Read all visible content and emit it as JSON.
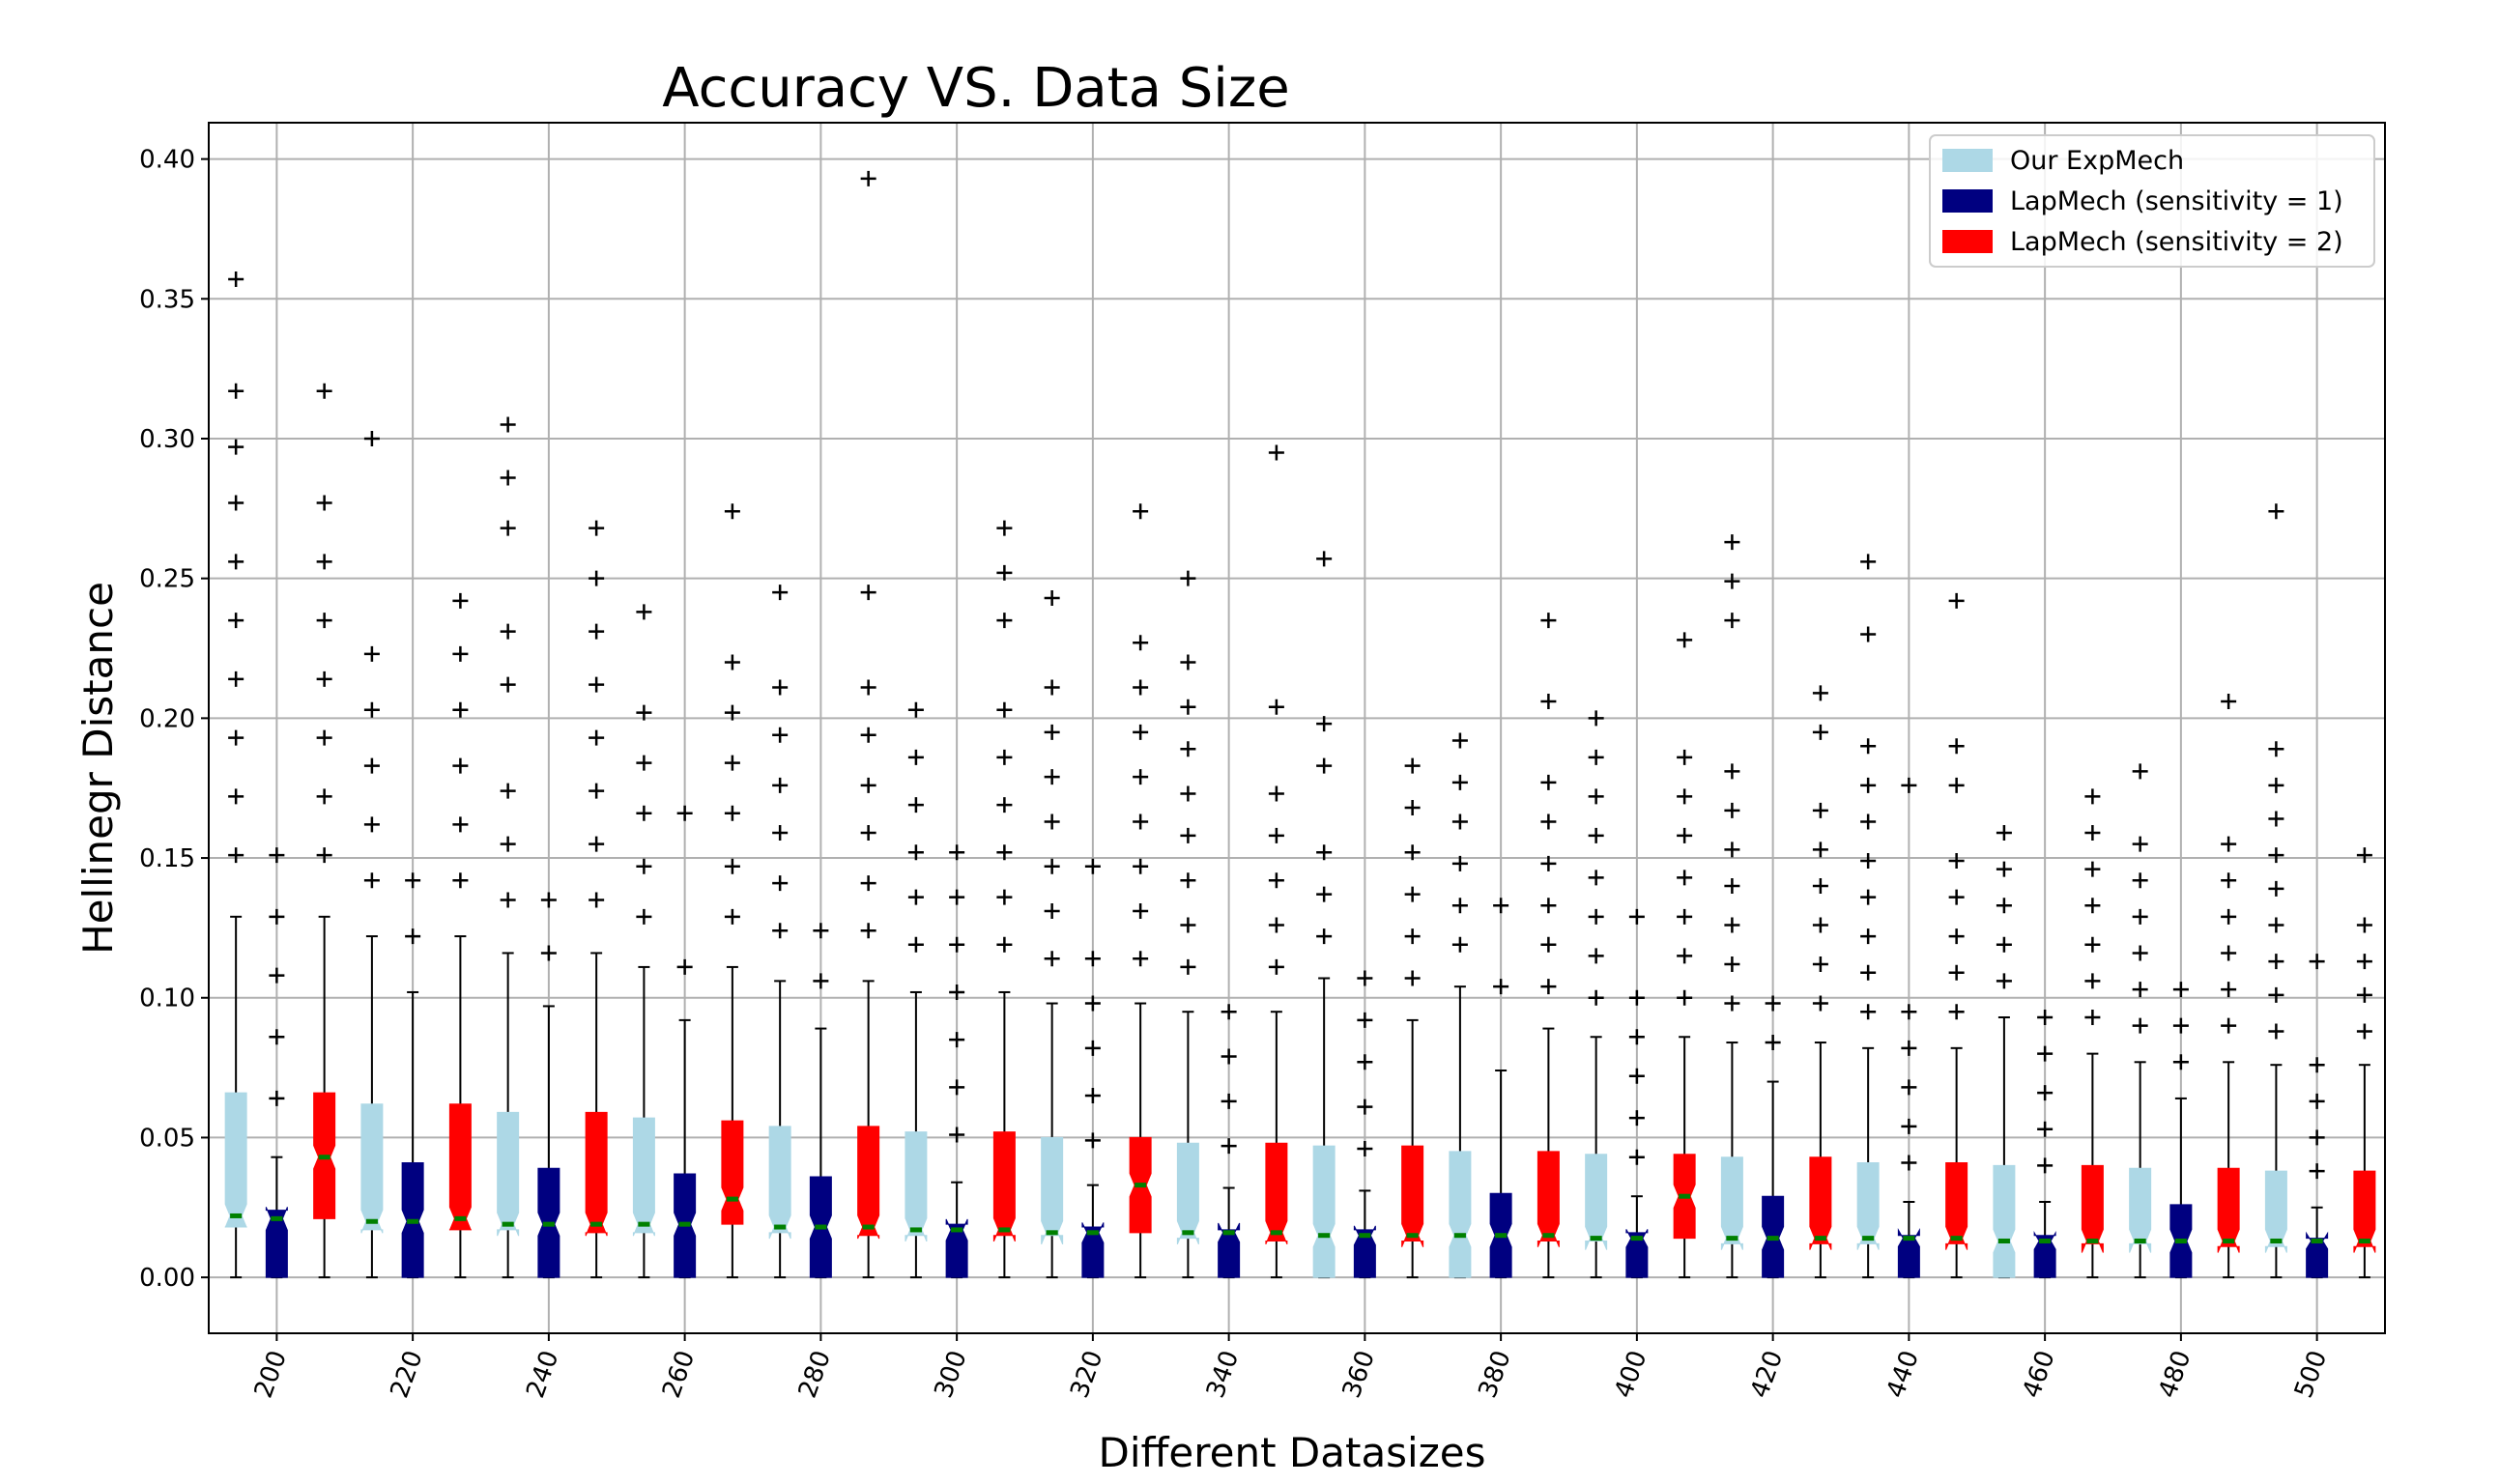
{
  "chart_data": {
    "type": "boxplot",
    "title": "Accuracy VS. Data Size",
    "xlabel": "Different Datasizes",
    "ylabel": "Hellinegr Distance",
    "x_ticks": [
      "200",
      "220",
      "240",
      "260",
      "280",
      "300",
      "320",
      "340",
      "360",
      "380",
      "400",
      "420",
      "440",
      "460",
      "480",
      "500"
    ],
    "y_ticks": [
      "0.00",
      "0.05",
      "0.10",
      "0.15",
      "0.20",
      "0.25",
      "0.30",
      "0.35",
      "0.40"
    ],
    "xlim": [
      190,
      510
    ],
    "ylim": [
      -0.02,
      0.413
    ],
    "grid": true,
    "legend_position": "top-right",
    "legend": [
      {
        "name": "Our ExpMech",
        "color": "#add8e6"
      },
      {
        "name": "LapMech (sensitivity = 1)",
        "color": "#000080"
      },
      {
        "name": "LapMech (sensitivity = 2)",
        "color": "#ff0000"
      }
    ],
    "median_color": "#008000",
    "boxes": [
      {
        "x": 194,
        "series": "Our ExpMech",
        "q1": 0.018,
        "med": 0.022,
        "q3": 0.066,
        "wlo": 0,
        "whi": 0.129,
        "fliers": [
          0.151,
          0.172,
          0.193,
          0.214,
          0.235,
          0.256,
          0.277,
          0.297,
          0.317,
          0.357
        ]
      },
      {
        "x": 200,
        "series": "LapMech (sensitivity = 1)",
        "q1": 0,
        "med": 0.021,
        "q3": 0.024,
        "wlo": 0,
        "whi": 0.043,
        "fliers": [
          0.064,
          0.086,
          0.108,
          0.129,
          0.151
        ]
      },
      {
        "x": 207,
        "series": "LapMech (sensitivity = 2)",
        "q1": 0.021,
        "med": 0.043,
        "q3": 0.066,
        "wlo": 0,
        "whi": 0.129,
        "fliers": [
          0.151,
          0.172,
          0.193,
          0.214,
          0.235,
          0.256,
          0.277,
          0.317
        ]
      },
      {
        "x": 214,
        "series": "Our ExpMech",
        "q1": 0.017,
        "med": 0.02,
        "q3": 0.062,
        "wlo": 0,
        "whi": 0.122,
        "fliers": [
          0.142,
          0.162,
          0.183,
          0.203,
          0.223,
          0.3
        ]
      },
      {
        "x": 220,
        "series": "LapMech (sensitivity = 1)",
        "q1": 0,
        "med": 0.02,
        "q3": 0.041,
        "wlo": 0,
        "whi": 0.102,
        "fliers": [
          0.122,
          0.142
        ]
      },
      {
        "x": 227,
        "series": "LapMech (sensitivity = 2)",
        "q1": 0.017,
        "med": 0.021,
        "q3": 0.062,
        "wlo": 0,
        "whi": 0.122,
        "fliers": [
          0.142,
          0.162,
          0.183,
          0.203,
          0.223,
          0.242
        ]
      },
      {
        "x": 234,
        "series": "Our ExpMech",
        "q1": 0.017,
        "med": 0.019,
        "q3": 0.059,
        "wlo": 0,
        "whi": 0.116,
        "fliers": [
          0.135,
          0.155,
          0.174,
          0.212,
          0.231,
          0.268,
          0.286,
          0.305
        ]
      },
      {
        "x": 240,
        "series": "LapMech (sensitivity = 1)",
        "q1": 0,
        "med": 0.019,
        "q3": 0.039,
        "wlo": 0,
        "whi": 0.097,
        "fliers": [
          0.116,
          0.135
        ]
      },
      {
        "x": 247,
        "series": "LapMech (sensitivity = 2)",
        "q1": 0.016,
        "med": 0.019,
        "q3": 0.059,
        "wlo": 0,
        "whi": 0.116,
        "fliers": [
          0.135,
          0.155,
          0.174,
          0.193,
          0.212,
          0.231,
          0.25,
          0.268
        ]
      },
      {
        "x": 254,
        "series": "Our ExpMech",
        "q1": 0.016,
        "med": 0.019,
        "q3": 0.057,
        "wlo": 0,
        "whi": 0.111,
        "fliers": [
          0.129,
          0.147,
          0.166,
          0.184,
          0.202,
          0.238
        ]
      },
      {
        "x": 260,
        "series": "LapMech (sensitivity = 1)",
        "q1": 0,
        "med": 0.019,
        "q3": 0.037,
        "wlo": 0,
        "whi": 0.092,
        "fliers": [
          0.111,
          0.166
        ]
      },
      {
        "x": 267,
        "series": "LapMech (sensitivity = 2)",
        "q1": 0.019,
        "med": 0.028,
        "q3": 0.056,
        "wlo": 0,
        "whi": 0.111,
        "fliers": [
          0.129,
          0.147,
          0.166,
          0.184,
          0.202,
          0.22,
          0.274
        ]
      },
      {
        "x": 274,
        "series": "Our ExpMech",
        "q1": 0.016,
        "med": 0.018,
        "q3": 0.054,
        "wlo": 0,
        "whi": 0.106,
        "fliers": [
          0.124,
          0.141,
          0.159,
          0.176,
          0.194,
          0.211,
          0.245
        ]
      },
      {
        "x": 280,
        "series": "LapMech (sensitivity = 1)",
        "q1": 0,
        "med": 0.018,
        "q3": 0.036,
        "wlo": 0,
        "whi": 0.089,
        "fliers": [
          0.106,
          0.124
        ]
      },
      {
        "x": 287,
        "series": "LapMech (sensitivity = 2)",
        "q1": 0.015,
        "med": 0.018,
        "q3": 0.054,
        "wlo": 0,
        "whi": 0.106,
        "fliers": [
          0.124,
          0.141,
          0.159,
          0.176,
          0.194,
          0.211,
          0.245,
          0.393
        ]
      },
      {
        "x": 294,
        "series": "Our ExpMech",
        "q1": 0.015,
        "med": 0.017,
        "q3": 0.052,
        "wlo": 0,
        "whi": 0.102,
        "fliers": [
          0.119,
          0.136,
          0.152,
          0.169,
          0.186,
          0.203
        ]
      },
      {
        "x": 300,
        "series": "LapMech (sensitivity = 1)",
        "q1": 0,
        "med": 0.017,
        "q3": 0.019,
        "wlo": 0,
        "whi": 0.034,
        "fliers": [
          0.051,
          0.068,
          0.085,
          0.102,
          0.119,
          0.136,
          0.152
        ]
      },
      {
        "x": 307,
        "series": "LapMech (sensitivity = 2)",
        "q1": 0.015,
        "med": 0.017,
        "q3": 0.052,
        "wlo": 0,
        "whi": 0.102,
        "fliers": [
          0.119,
          0.136,
          0.152,
          0.169,
          0.186,
          0.203,
          0.235,
          0.252,
          0.268
        ]
      },
      {
        "x": 314,
        "series": "Our ExpMech",
        "q1": 0.015,
        "med": 0.016,
        "q3": 0.05,
        "wlo": 0,
        "whi": 0.098,
        "fliers": [
          0.114,
          0.131,
          0.147,
          0.163,
          0.179,
          0.195,
          0.211,
          0.243
        ]
      },
      {
        "x": 320,
        "series": "LapMech (sensitivity = 1)",
        "q1": 0,
        "med": 0.016,
        "q3": 0.018,
        "wlo": 0,
        "whi": 0.033,
        "fliers": [
          0.049,
          0.065,
          0.082,
          0.098,
          0.114,
          0.147
        ]
      },
      {
        "x": 327,
        "series": "LapMech (sensitivity = 2)",
        "q1": 0.016,
        "med": 0.033,
        "q3": 0.05,
        "wlo": 0,
        "whi": 0.098,
        "fliers": [
          0.114,
          0.131,
          0.147,
          0.163,
          0.179,
          0.195,
          0.211,
          0.227,
          0.274
        ]
      },
      {
        "x": 334,
        "series": "Our ExpMech",
        "q1": 0.014,
        "med": 0.016,
        "q3": 0.048,
        "wlo": 0,
        "whi": 0.095,
        "fliers": [
          0.111,
          0.126,
          0.142,
          0.158,
          0.173,
          0.189,
          0.204,
          0.22,
          0.25
        ]
      },
      {
        "x": 340,
        "series": "LapMech (sensitivity = 1)",
        "q1": 0,
        "med": 0.016,
        "q3": 0.017,
        "wlo": 0,
        "whi": 0.032,
        "fliers": [
          0.047,
          0.063,
          0.079,
          0.095
        ]
      },
      {
        "x": 347,
        "series": "LapMech (sensitivity = 2)",
        "q1": 0.013,
        "med": 0.016,
        "q3": 0.048,
        "wlo": 0,
        "whi": 0.095,
        "fliers": [
          0.111,
          0.126,
          0.142,
          0.158,
          0.173,
          0.204,
          0.295
        ]
      },
      {
        "x": 354,
        "series": "Our ExpMech",
        "q1": 0,
        "med": 0.015,
        "q3": 0.047,
        "wlo": 0,
        "whi": 0.107,
        "fliers": [
          0.122,
          0.137,
          0.152,
          0.183,
          0.198,
          0.257
        ]
      },
      {
        "x": 360,
        "series": "LapMech (sensitivity = 1)",
        "q1": 0,
        "med": 0.015,
        "q3": 0.017,
        "wlo": 0,
        "whi": 0.031,
        "fliers": [
          0.046,
          0.061,
          0.077,
          0.092,
          0.107
        ]
      },
      {
        "x": 367,
        "series": "LapMech (sensitivity = 2)",
        "q1": 0.013,
        "med": 0.015,
        "q3": 0.047,
        "wlo": 0,
        "whi": 0.092,
        "fliers": [
          0.107,
          0.122,
          0.137,
          0.152,
          0.168,
          0.183
        ]
      },
      {
        "x": 374,
        "series": "Our ExpMech",
        "q1": 0,
        "med": 0.015,
        "q3": 0.045,
        "wlo": 0,
        "whi": 0.104,
        "fliers": [
          0.119,
          0.133,
          0.148,
          0.163,
          0.177,
          0.192
        ]
      },
      {
        "x": 380,
        "series": "LapMech (sensitivity = 1)",
        "q1": 0,
        "med": 0.015,
        "q3": 0.03,
        "wlo": 0,
        "whi": 0.074,
        "fliers": [
          0.104,
          0.133
        ]
      },
      {
        "x": 387,
        "series": "LapMech (sensitivity = 2)",
        "q1": 0.013,
        "med": 0.015,
        "q3": 0.045,
        "wlo": 0,
        "whi": 0.089,
        "fliers": [
          0.104,
          0.119,
          0.133,
          0.148,
          0.163,
          0.177,
          0.206,
          0.235
        ]
      },
      {
        "x": 394,
        "series": "Our ExpMech",
        "q1": 0.013,
        "med": 0.014,
        "q3": 0.044,
        "wlo": 0,
        "whi": 0.086,
        "fliers": [
          0.1,
          0.115,
          0.129,
          0.143,
          0.158,
          0.172,
          0.186,
          0.2
        ]
      },
      {
        "x": 400,
        "series": "LapMech (sensitivity = 1)",
        "q1": 0,
        "med": 0.014,
        "q3": 0.016,
        "wlo": 0,
        "whi": 0.029,
        "fliers": [
          0.043,
          0.057,
          0.072,
          0.086,
          0.1,
          0.129
        ]
      },
      {
        "x": 407,
        "series": "LapMech (sensitivity = 2)",
        "q1": 0.014,
        "med": 0.029,
        "q3": 0.044,
        "wlo": 0,
        "whi": 0.086,
        "fliers": [
          0.1,
          0.115,
          0.129,
          0.143,
          0.158,
          0.172,
          0.186,
          0.228
        ]
      },
      {
        "x": 414,
        "series": "Our ExpMech",
        "q1": 0.012,
        "med": 0.014,
        "q3": 0.043,
        "wlo": 0,
        "whi": 0.084,
        "fliers": [
          0.098,
          0.112,
          0.126,
          0.14,
          0.153,
          0.167,
          0.181,
          0.235,
          0.249,
          0.263
        ]
      },
      {
        "x": 420,
        "series": "LapMech (sensitivity = 1)",
        "q1": 0,
        "med": 0.014,
        "q3": 0.029,
        "wlo": 0,
        "whi": 0.07,
        "fliers": [
          0.084,
          0.098
        ]
      },
      {
        "x": 427,
        "series": "LapMech (sensitivity = 2)",
        "q1": 0.012,
        "med": 0.014,
        "q3": 0.043,
        "wlo": 0,
        "whi": 0.084,
        "fliers": [
          0.098,
          0.112,
          0.126,
          0.14,
          0.153,
          0.167,
          0.195,
          0.209
        ]
      },
      {
        "x": 434,
        "series": "Our ExpMech",
        "q1": 0.012,
        "med": 0.014,
        "q3": 0.041,
        "wlo": 0,
        "whi": 0.082,
        "fliers": [
          0.095,
          0.109,
          0.122,
          0.136,
          0.149,
          0.163,
          0.176,
          0.19,
          0.23,
          0.256
        ]
      },
      {
        "x": 440,
        "series": "LapMech (sensitivity = 1)",
        "q1": 0,
        "med": 0.014,
        "q3": 0.015,
        "wlo": 0,
        "whi": 0.027,
        "fliers": [
          0.041,
          0.054,
          0.068,
          0.082,
          0.095,
          0.176
        ]
      },
      {
        "x": 447,
        "series": "LapMech (sensitivity = 2)",
        "q1": 0.012,
        "med": 0.014,
        "q3": 0.041,
        "wlo": 0,
        "whi": 0.082,
        "fliers": [
          0.095,
          0.109,
          0.122,
          0.136,
          0.149,
          0.176,
          0.19,
          0.242
        ]
      },
      {
        "x": 454,
        "series": "Our ExpMech",
        "q1": 0,
        "med": 0.013,
        "q3": 0.04,
        "wlo": 0,
        "whi": 0.093,
        "fliers": [
          0.106,
          0.119,
          0.133,
          0.146,
          0.159
        ]
      },
      {
        "x": 460,
        "series": "LapMech (sensitivity = 1)",
        "q1": 0,
        "med": 0.013,
        "q3": 0.015,
        "wlo": 0,
        "whi": 0.027,
        "fliers": [
          0.04,
          0.053,
          0.066,
          0.08,
          0.093
        ]
      },
      {
        "x": 467,
        "series": "LapMech (sensitivity = 2)",
        "q1": 0.012,
        "med": 0.013,
        "q3": 0.04,
        "wlo": 0,
        "whi": 0.08,
        "fliers": [
          0.093,
          0.106,
          0.119,
          0.133,
          0.146,
          0.159,
          0.172
        ]
      },
      {
        "x": 474,
        "series": "Our ExpMech",
        "q1": 0.012,
        "med": 0.013,
        "q3": 0.039,
        "wlo": 0,
        "whi": 0.077,
        "fliers": [
          0.09,
          0.103,
          0.116,
          0.129,
          0.142,
          0.155,
          0.181
        ]
      },
      {
        "x": 480,
        "series": "LapMech (sensitivity = 1)",
        "q1": 0,
        "med": 0.013,
        "q3": 0.026,
        "wlo": 0,
        "whi": 0.064,
        "fliers": [
          0.077,
          0.09,
          0.103
        ]
      },
      {
        "x": 487,
        "series": "LapMech (sensitivity = 2)",
        "q1": 0.011,
        "med": 0.013,
        "q3": 0.039,
        "wlo": 0,
        "whi": 0.077,
        "fliers": [
          0.09,
          0.103,
          0.116,
          0.129,
          0.142,
          0.155,
          0.206
        ]
      },
      {
        "x": 494,
        "series": "Our ExpMech",
        "q1": 0.011,
        "med": 0.013,
        "q3": 0.038,
        "wlo": 0,
        "whi": 0.076,
        "fliers": [
          0.088,
          0.101,
          0.113,
          0.126,
          0.139,
          0.151,
          0.164,
          0.176,
          0.189,
          0.274
        ]
      },
      {
        "x": 500,
        "series": "LapMech (sensitivity = 1)",
        "q1": 0,
        "med": 0.013,
        "q3": 0.014,
        "wlo": 0,
        "whi": 0.025,
        "fliers": [
          0.038,
          0.05,
          0.063,
          0.076,
          0.113
        ]
      },
      {
        "x": 507,
        "series": "LapMech (sensitivity = 2)",
        "q1": 0.011,
        "med": 0.013,
        "q3": 0.038,
        "wlo": 0,
        "whi": 0.076,
        "fliers": [
          0.088,
          0.101,
          0.113,
          0.126,
          0.151
        ]
      }
    ]
  }
}
